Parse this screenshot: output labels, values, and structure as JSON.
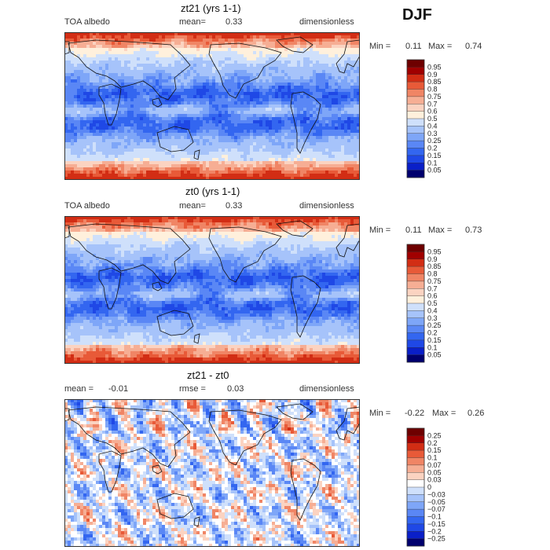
{
  "season": "DJF",
  "colors": {
    "scale12": [
      "#00006e",
      "#0a1fc8",
      "#1f48e6",
      "#3366f0",
      "#5a87f5",
      "#7ea6f8",
      "#a6c3fa",
      "#cfe0fb",
      "#fff0dc",
      "#fbd3c1",
      "#f6ae94",
      "#f08565",
      "#e85a38",
      "#d22d14",
      "#a00000",
      "#6e0000"
    ],
    "diff": [
      "#00006e",
      "#0a1fc8",
      "#1f48e6",
      "#3366f0",
      "#5a87f5",
      "#7ea6f8",
      "#a6c3fa",
      "#cfe0fb",
      "#ffffff",
      "#fbd3c1",
      "#f6ae94",
      "#f08565",
      "#e85a38",
      "#d22d14",
      "#a00000",
      "#6e0000"
    ]
  },
  "panels": [
    {
      "title": "zt21 (yrs 1-1)",
      "left": "TOA albedo",
      "mean_label": "mean=",
      "mean_value": "0.33",
      "units": "dimensionless",
      "min_label": "Min =",
      "min_value": "0.11",
      "max_label": "Max =",
      "max_value": "0.74",
      "levels": [
        "0.95",
        "0.9",
        "0.85",
        "0.8",
        "0.75",
        "0.7",
        "0.6",
        "0.5",
        "0.4",
        "0.3",
        "0.25",
        "0.2",
        "0.15",
        "0.1",
        "0.05"
      ]
    },
    {
      "title": "zt0 (yrs 1-1)",
      "left": "TOA albedo",
      "mean_label": "mean=",
      "mean_value": "0.33",
      "units": "dimensionless",
      "min_label": "Min =",
      "min_value": "0.11",
      "max_label": "Max =",
      "max_value": "0.73",
      "levels": [
        "0.95",
        "0.9",
        "0.85",
        "0.8",
        "0.75",
        "0.7",
        "0.6",
        "0.5",
        "0.4",
        "0.3",
        "0.25",
        "0.2",
        "0.15",
        "0.1",
        "0.05"
      ]
    },
    {
      "title": "zt21 - zt0",
      "mean_label": "mean =",
      "mean_value": "-0.01",
      "rmse_label": "rmse =",
      "rmse_value": "0.03",
      "units": "dimensionless",
      "min_label": "Min =",
      "min_value": "-0.22",
      "max_label": "Max =",
      "max_value": "0.26",
      "levels": [
        "0.25",
        "0.2",
        "0.15",
        "0.1",
        "0.07",
        "0.05",
        "0.03",
        "0",
        "-0.03",
        "-0.05",
        "-0.07",
        "-0.1",
        "-0.15",
        "-0.2",
        "-0.25"
      ]
    }
  ],
  "chart_data": {
    "type": "heatmap",
    "variable": "TOA albedo",
    "season": "DJF",
    "panels": [
      {
        "title": "zt21 (yrs 1-1)",
        "mean": 0.33,
        "min": 0.11,
        "max": 0.74,
        "units": "dimensionless",
        "contour_levels": [
          0.05,
          0.1,
          0.15,
          0.2,
          0.25,
          0.3,
          0.4,
          0.5,
          0.6,
          0.7,
          0.75,
          0.8,
          0.85,
          0.9,
          0.95
        ]
      },
      {
        "title": "zt0 (yrs 1-1)",
        "mean": 0.33,
        "min": 0.11,
        "max": 0.73,
        "units": "dimensionless",
        "contour_levels": [
          0.05,
          0.1,
          0.15,
          0.2,
          0.25,
          0.3,
          0.4,
          0.5,
          0.6,
          0.7,
          0.75,
          0.8,
          0.85,
          0.9,
          0.95
        ]
      },
      {
        "title": "zt21 - zt0",
        "mean": -0.01,
        "rmse": 0.03,
        "min": -0.22,
        "max": 0.26,
        "units": "dimensionless",
        "contour_levels": [
          -0.25,
          -0.2,
          -0.15,
          -0.1,
          -0.07,
          -0.05,
          -0.03,
          0,
          0.03,
          0.05,
          0.07,
          0.1,
          0.15,
          0.2,
          0.25
        ]
      }
    ]
  }
}
